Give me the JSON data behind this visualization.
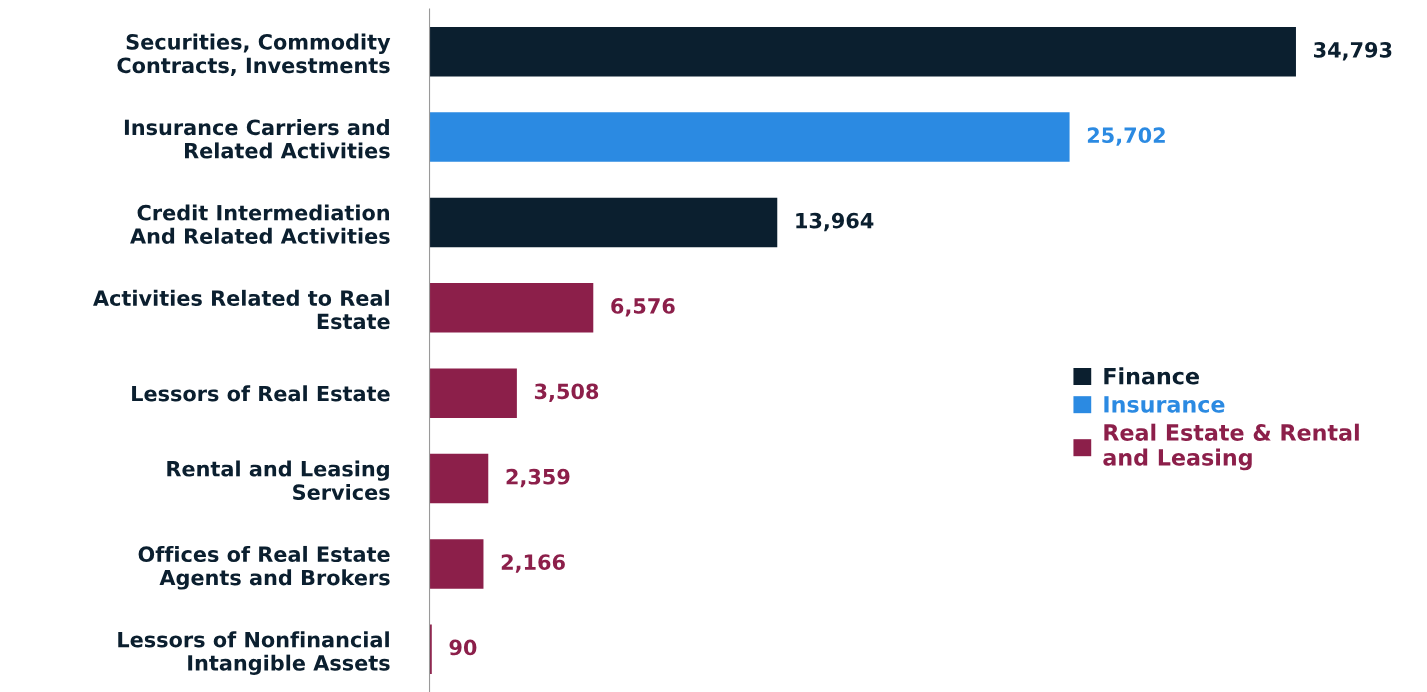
{
  "chart_data": {
    "type": "bar",
    "orientation": "horizontal",
    "legend": "right",
    "grid": false,
    "categories": [
      "Securities, Commodity\nContracts, Investments",
      "Insurance Carriers and\nRelated Activities",
      "Credit Intermediation\nAnd Related Activities",
      "Activities Related to Real\nEstate",
      "Lessors of Real Estate",
      "Rental and Leasing\nServices",
      "Offices of Real Estate\nAgents and Brokers",
      "Lessors of Nonfinancial\nIntangible Assets"
    ],
    "series": [
      {
        "name": "Finance",
        "color": "#0b1f2f",
        "values": [
          34793,
          null,
          13964,
          null,
          null,
          null,
          null,
          null
        ],
        "value_labels": [
          "34,793",
          null,
          "13,964",
          null,
          null,
          null,
          null,
          null
        ]
      },
      {
        "name": "Insurance",
        "color": "#2b8ae2",
        "values": [
          null,
          25702,
          null,
          null,
          null,
          null,
          null,
          null
        ],
        "value_labels": [
          null,
          "25,702",
          null,
          null,
          null,
          null,
          null,
          null
        ]
      },
      {
        "name": "Real Estate & Rental\nand Leasing",
        "color": "#8c1f4a",
        "values": [
          null,
          null,
          null,
          6576,
          3508,
          2359,
          2166,
          90
        ],
        "value_labels": [
          null,
          null,
          null,
          "6,576",
          "3,508",
          "2,359",
          "2,166",
          "90"
        ]
      }
    ]
  }
}
